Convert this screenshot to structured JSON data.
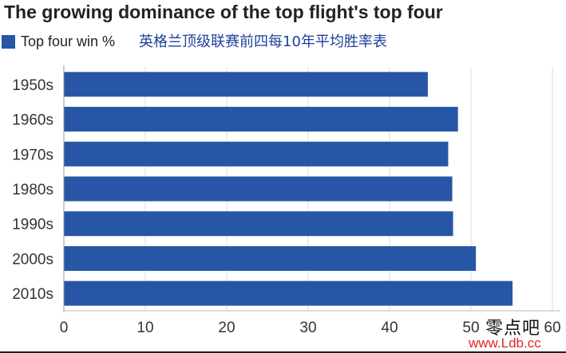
{
  "chart_data": {
    "type": "bar",
    "orientation": "horizontal",
    "title": "The growing dominance of the top flight's top four",
    "subtitle": "英格兰顶级联赛前四每10年平均胜率表",
    "categories": [
      "1950s",
      "1960s",
      "1970s",
      "1980s",
      "1990s",
      "2000s",
      "2010s"
    ],
    "series": [
      {
        "name": "Top four win %",
        "values": [
          44.7,
          48.4,
          47.2,
          47.7,
          47.8,
          50.6,
          55.1
        ]
      }
    ],
    "xlim": [
      0,
      60
    ],
    "xticks": [
      "0",
      "10",
      "20",
      "30",
      "40",
      "50",
      "60"
    ],
    "grid": true,
    "legend_position": "top-left",
    "bar_color": "#2756a6"
  },
  "watermark": {
    "chinese": "零点吧",
    "url": "www.Ldb.cc"
  }
}
